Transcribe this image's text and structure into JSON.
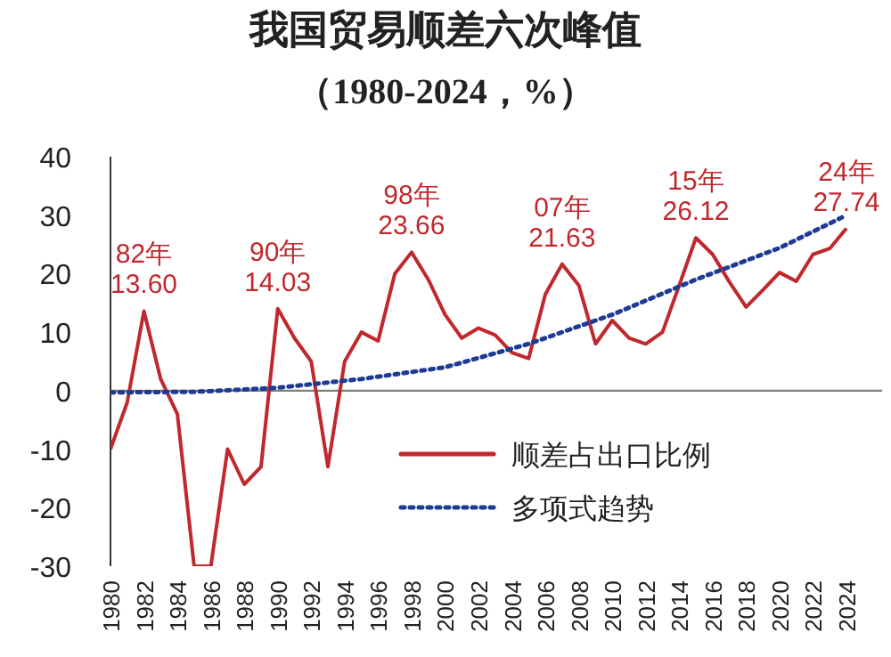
{
  "chart_data": {
    "type": "line",
    "title": "我国贸易顺差六次峰值",
    "subtitle": "（1980-2024，%）",
    "xlim": [
      1980,
      2024
    ],
    "xticks": [
      1980,
      1982,
      1984,
      1986,
      1988,
      1990,
      1992,
      1994,
      1996,
      1998,
      2000,
      2002,
      2004,
      2006,
      2008,
      2010,
      2012,
      2014,
      2016,
      2018,
      2020,
      2022,
      2024
    ],
    "ylim": [
      -30,
      40
    ],
    "yticks": [
      -30,
      -20,
      -10,
      0,
      10,
      20,
      30,
      40
    ],
    "legend": "bottom right",
    "grid": false,
    "ref_lines": [
      {
        "axis": "y",
        "value": 0,
        "color": "#808080"
      }
    ],
    "series": [
      {
        "name": "顺差占出口比例",
        "color": "#c0282d",
        "line_style": "solid",
        "x": [
          1980,
          1981,
          1982,
          1983,
          1984,
          1985,
          1986,
          1987,
          1988,
          1989,
          1990,
          1991,
          1992,
          1993,
          1994,
          1995,
          1996,
          1997,
          1998,
          1999,
          2000,
          2001,
          2002,
          2003,
          2004,
          2005,
          2006,
          2007,
          2008,
          2009,
          2010,
          2011,
          2012,
          2013,
          2014,
          2015,
          2016,
          2017,
          2018,
          2019,
          2020,
          2021,
          2022,
          2023,
          2024
        ],
        "values": [
          -10,
          -2,
          13.6,
          2,
          -4,
          -30,
          -30,
          -10,
          -16,
          -13,
          14.03,
          9,
          5,
          -13,
          5,
          10,
          8.5,
          20,
          23.66,
          19,
          13,
          9,
          10.7,
          9.5,
          6.5,
          5.5,
          16.5,
          21.63,
          18,
          8,
          12,
          9,
          8,
          10,
          18,
          26.12,
          23.3,
          18.6,
          14.3,
          17.2,
          20.2,
          18.7,
          23.3,
          24.3,
          27.74
        ]
      },
      {
        "name": "多项式趋势",
        "color": "#1f3a93",
        "line_style": "dotted",
        "x": [
          1980,
          1985,
          1990,
          1995,
          2000,
          2005,
          2010,
          2015,
          2020,
          2024
        ],
        "values": [
          -0.3,
          -0.2,
          0.5,
          2,
          4,
          8,
          13,
          19,
          24.4,
          30
        ]
      }
    ],
    "annotations": [
      {
        "text": "82年\n13.60",
        "x": 1982,
        "y": 13.6
      },
      {
        "text": "90年\n14.03",
        "x": 1990,
        "y": 14.03
      },
      {
        "text": "98年\n23.66",
        "x": 1998,
        "y": 23.66
      },
      {
        "text": "07年\n21.63",
        "x": 2007,
        "y": 21.63
      },
      {
        "text": "15年\n26.12",
        "x": 2015,
        "y": 26.12
      },
      {
        "text": "24年\n27.74",
        "x": 2024,
        "y": 27.74
      }
    ]
  }
}
